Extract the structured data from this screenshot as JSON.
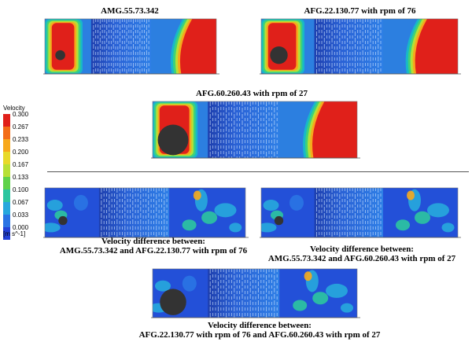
{
  "panels": [
    {
      "id": "p1",
      "title": "AMG.55.73.342",
      "kind": "velocity",
      "disc": "small"
    },
    {
      "id": "p2",
      "title": "AFG.22.130.77 with rpm of 76",
      "kind": "velocity",
      "disc": "medium"
    },
    {
      "id": "p3",
      "title": "AFG.60.260.43 with rpm of 27",
      "kind": "velocity",
      "disc": "large"
    },
    {
      "id": "p4",
      "caption_line1": "Velocity difference between:",
      "caption_line2": "AMG.55.73.342 and AFG.22.130.77 with rpm of 76",
      "kind": "difference",
      "disc": "small"
    },
    {
      "id": "p5",
      "caption_line1": "Velocity difference between:",
      "caption_line2": "AMG.55.73.342 and AFG.60.260.43 with rpm of 27",
      "kind": "difference",
      "disc": "small"
    },
    {
      "id": "p6",
      "caption_line1": "Velocity difference between:",
      "caption_line2": "AFG.22.130.77 with rpm of 76 and AFG.60.260.43 with rpm of 27",
      "kind": "difference",
      "disc": "large"
    }
  ],
  "legend": {
    "title": "Velocity",
    "ticks": [
      "0.300",
      "0.267",
      "0.233",
      "0.200",
      "0.167",
      "0.133",
      "0.100",
      "0.067",
      "0.033",
      "0.000"
    ],
    "colors": [
      "#e0201a",
      "#f36d18",
      "#f7a81c",
      "#e8d92a",
      "#b7e036",
      "#5fd24a",
      "#2cc5a0",
      "#27a8dd",
      "#2a74e4",
      "#2342d8"
    ],
    "unit": "[m s^-1]"
  }
}
